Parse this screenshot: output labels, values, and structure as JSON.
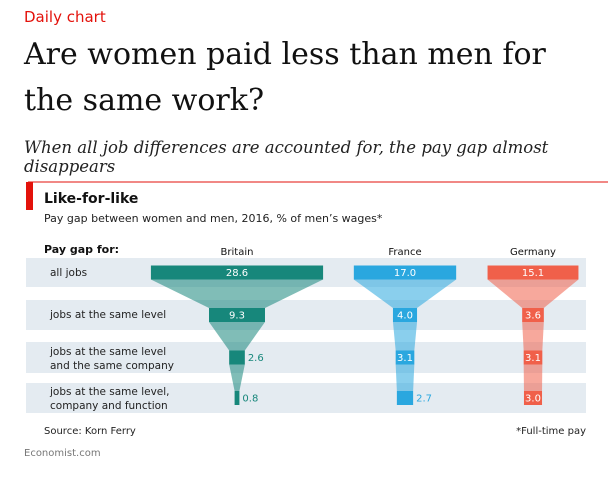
{
  "header": {
    "kicker": "Daily chart",
    "title": "Are women paid less than men for the same work?",
    "subtitle": "When all job differences are accounted for, the pay gap almost disappears"
  },
  "chart_data": {
    "type": "funnel",
    "title": "Like-for-like",
    "subtitle": "Pay gap between women and men, 2016, % of men’s wages*",
    "row_header": "Pay gap for:",
    "categories": [
      "all jobs",
      "jobs at the same level",
      "jobs at the same level\nand the same company",
      "jobs at the same level,\ncompany and function"
    ],
    "series": [
      {
        "name": "Britain",
        "color": "#17877b",
        "values": [
          28.6,
          9.3,
          2.6,
          0.8
        ],
        "value_labels": [
          "28.6",
          "9.3",
          "2.6",
          "0.8"
        ]
      },
      {
        "name": "France",
        "color": "#2aa7df",
        "values": [
          17.0,
          4.0,
          3.1,
          2.7
        ],
        "value_labels": [
          "17.0",
          "4.0",
          "3.1",
          "2.7"
        ]
      },
      {
        "name": "Germany",
        "color": "#f0604a",
        "values": [
          15.1,
          3.6,
          3.1,
          3.0
        ],
        "value_labels": [
          "15.1",
          "3.6",
          "3.1",
          "3.0"
        ]
      }
    ],
    "source": "Source: Korn Ferry",
    "note": "*Full-time pay"
  },
  "footer": "Economist.com"
}
